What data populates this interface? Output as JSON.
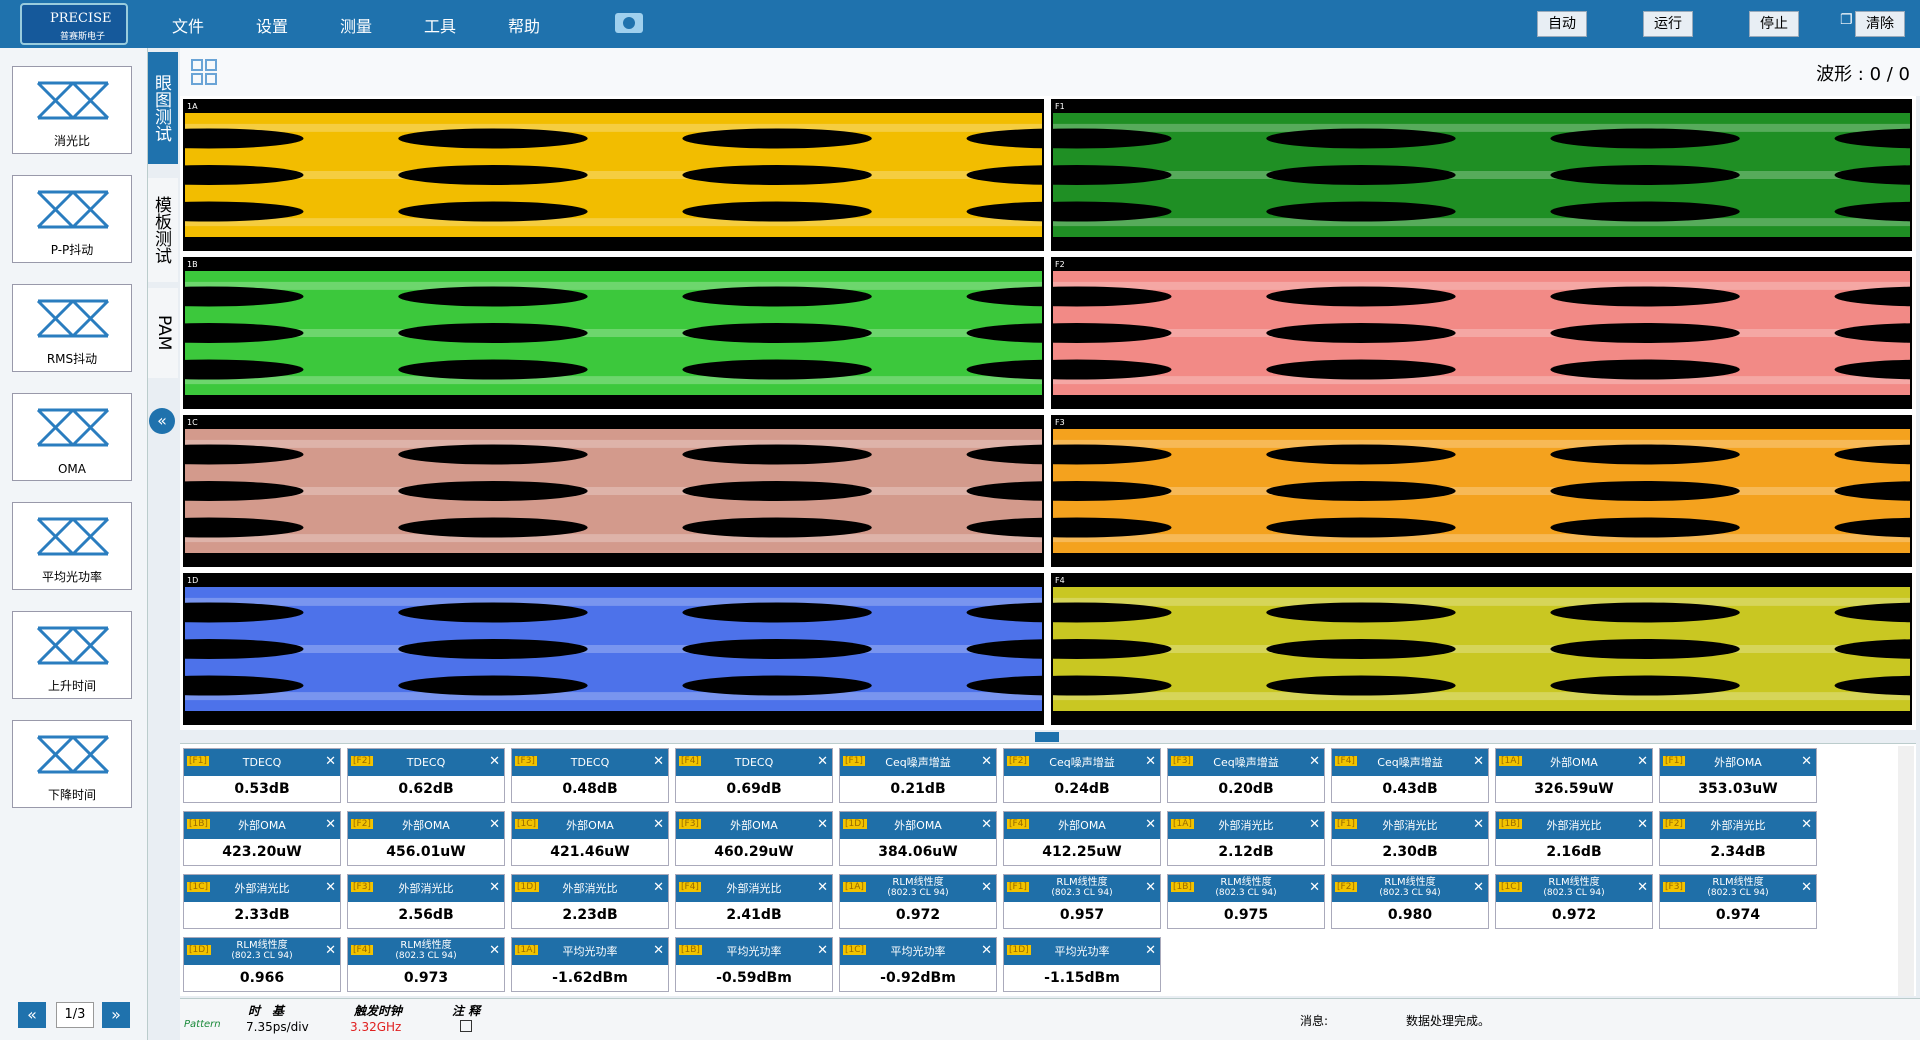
{
  "app": {
    "logo": "PRECISE",
    "logo_sub": "普赛斯电子",
    "menu": [
      "文件",
      "设置",
      "测量",
      "工具",
      "帮助"
    ],
    "buttons": [
      "自动",
      "运行",
      "停止",
      "清除"
    ]
  },
  "toolbar": {
    "waveforms": "波形 : 0 / 0"
  },
  "tools": [
    "消光比",
    "P-P抖动",
    "RMS抖动",
    "OMA",
    "平均光功率",
    "上升时间",
    "下降时间"
  ],
  "tabs": [
    "眼图测试",
    "模板测试",
    "PAM"
  ],
  "pager": "1/3",
  "panels": [
    {
      "label": "1A",
      "color": "#f2bd00"
    },
    {
      "label": "1B",
      "color": "#3cc83c"
    },
    {
      "label": "1C",
      "color": "#d39a8c"
    },
    {
      "label": "1D",
      "color": "#4d72ea"
    },
    {
      "label": "F1",
      "color": "#1f8f24"
    },
    {
      "label": "F2",
      "color": "#f28a86"
    },
    {
      "label": "F3",
      "color": "#f4a21e"
    },
    {
      "label": "F4",
      "color": "#c9c722"
    }
  ],
  "measurements": [
    {
      "channel": "[F1]",
      "name": "TDECQ",
      "value": "0.53dB"
    },
    {
      "channel": "[F2]",
      "name": "TDECQ",
      "value": "0.62dB"
    },
    {
      "channel": "[F3]",
      "name": "TDECQ",
      "value": "0.48dB"
    },
    {
      "channel": "[F4]",
      "name": "TDECQ",
      "value": "0.69dB"
    },
    {
      "channel": "[F1]",
      "name": "Ceq噪声增益",
      "value": "0.21dB"
    },
    {
      "channel": "[F2]",
      "name": "Ceq噪声增益",
      "value": "0.24dB"
    },
    {
      "channel": "[F3]",
      "name": "Ceq噪声增益",
      "value": "0.20dB"
    },
    {
      "channel": "[F4]",
      "name": "Ceq噪声增益",
      "value": "0.43dB"
    },
    {
      "channel": "[1A]",
      "name": "外部OMA",
      "value": "326.59uW"
    },
    {
      "channel": "[F1]",
      "name": "外部OMA",
      "value": "353.03uW"
    },
    {
      "channel": "[1B]",
      "name": "外部OMA",
      "value": "423.20uW"
    },
    {
      "channel": "[F2]",
      "name": "外部OMA",
      "value": "456.01uW"
    },
    {
      "channel": "[1C]",
      "name": "外部OMA",
      "value": "421.46uW"
    },
    {
      "channel": "[F3]",
      "name": "外部OMA",
      "value": "460.29uW"
    },
    {
      "channel": "[1D]",
      "name": "外部OMA",
      "value": "384.06uW"
    },
    {
      "channel": "[F4]",
      "name": "外部OMA",
      "value": "412.25uW"
    },
    {
      "channel": "[1A]",
      "name": "外部消光比",
      "value": "2.12dB"
    },
    {
      "channel": "[F1]",
      "name": "外部消光比",
      "value": "2.30dB"
    },
    {
      "channel": "[1B]",
      "name": "外部消光比",
      "value": "2.16dB"
    },
    {
      "channel": "[F2]",
      "name": "外部消光比",
      "value": "2.34dB"
    },
    {
      "channel": "[1C]",
      "name": "外部消光比",
      "value": "2.33dB"
    },
    {
      "channel": "[F3]",
      "name": "外部消光比",
      "value": "2.56dB"
    },
    {
      "channel": "[1D]",
      "name": "外部消光比",
      "value": "2.23dB"
    },
    {
      "channel": "[F4]",
      "name": "外部消光比",
      "value": "2.41dB"
    },
    {
      "channel": "[1A]",
      "name": "RLM线性度",
      "sub": "(802.3 CL 94)",
      "value": "0.972"
    },
    {
      "channel": "[F1]",
      "name": "RLM线性度",
      "sub": "(802.3 CL 94)",
      "value": "0.957"
    },
    {
      "channel": "[1B]",
      "name": "RLM线性度",
      "sub": "(802.3 CL 94)",
      "value": "0.975"
    },
    {
      "channel": "[F2]",
      "name": "RLM线性度",
      "sub": "(802.3 CL 94)",
      "value": "0.980"
    },
    {
      "channel": "[1C]",
      "name": "RLM线性度",
      "sub": "(802.3 CL 94)",
      "value": "0.972"
    },
    {
      "channel": "[F3]",
      "name": "RLM线性度",
      "sub": "(802.3 CL 94)",
      "value": "0.974"
    },
    {
      "channel": "[1D]",
      "name": "RLM线性度",
      "sub": "(802.3 CL 94)",
      "value": "0.966"
    },
    {
      "channel": "[F4]",
      "name": "RLM线性度",
      "sub": "(802.3 CL 94)",
      "value": "0.973"
    },
    {
      "channel": "[1A]",
      "name": "平均光功率",
      "value": "-1.62dBm"
    },
    {
      "channel": "[1B]",
      "name": "平均光功率",
      "value": "-0.59dBm"
    },
    {
      "channel": "[1C]",
      "name": "平均光功率",
      "value": "-0.92dBm"
    },
    {
      "channel": "[1D]",
      "name": "平均光功率",
      "value": "-1.15dBm"
    }
  ],
  "status": {
    "pattern": "Pattern",
    "timebase_label": "时　基",
    "timebase": "7.35ps/div",
    "trigger_label": "触发时钟",
    "trigger": "3.32GHz",
    "note_label": "注 释",
    "message_label": "消息:",
    "message": "数据处理完成。"
  }
}
